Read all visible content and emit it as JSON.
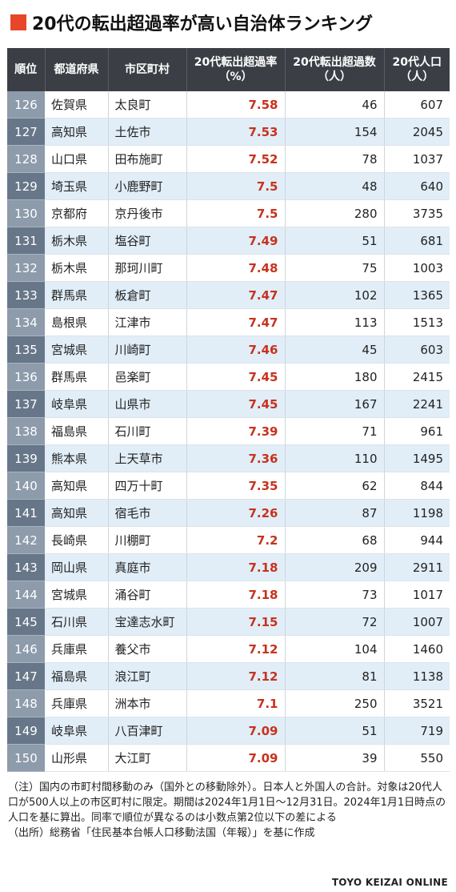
{
  "title": "20代の転出超過率が高い自治体ランキング",
  "colors": {
    "accent": "#e8462a",
    "rate_text": "#c8321d",
    "header_bg": "#3b3f45",
    "stripe": "#e1eef8"
  },
  "table": {
    "headers": [
      "順位",
      "都道府県",
      "市区町村",
      "20代転出超過率\n（%）",
      "20代転出超過数\n（人）",
      "20代人口\n（人）"
    ],
    "rows": [
      [
        "126",
        "佐賀県",
        "太良町",
        "7.58",
        "46",
        "607"
      ],
      [
        "127",
        "高知県",
        "土佐市",
        "7.53",
        "154",
        "2045"
      ],
      [
        "128",
        "山口県",
        "田布施町",
        "7.52",
        "78",
        "1037"
      ],
      [
        "129",
        "埼玉県",
        "小鹿野町",
        "7.5",
        "48",
        "640"
      ],
      [
        "130",
        "京都府",
        "京丹後市",
        "7.5",
        "280",
        "3735"
      ],
      [
        "131",
        "栃木県",
        "塩谷町",
        "7.49",
        "51",
        "681"
      ],
      [
        "132",
        "栃木県",
        "那珂川町",
        "7.48",
        "75",
        "1003"
      ],
      [
        "133",
        "群馬県",
        "板倉町",
        "7.47",
        "102",
        "1365"
      ],
      [
        "134",
        "島根県",
        "江津市",
        "7.47",
        "113",
        "1513"
      ],
      [
        "135",
        "宮城県",
        "川崎町",
        "7.46",
        "45",
        "603"
      ],
      [
        "136",
        "群馬県",
        "邑楽町",
        "7.45",
        "180",
        "2415"
      ],
      [
        "137",
        "岐阜県",
        "山県市",
        "7.45",
        "167",
        "2241"
      ],
      [
        "138",
        "福島県",
        "石川町",
        "7.39",
        "71",
        "961"
      ],
      [
        "139",
        "熊本県",
        "上天草市",
        "7.36",
        "110",
        "1495"
      ],
      [
        "140",
        "高知県",
        "四万十町",
        "7.35",
        "62",
        "844"
      ],
      [
        "141",
        "高知県",
        "宿毛市",
        "7.26",
        "87",
        "1198"
      ],
      [
        "142",
        "長崎県",
        "川棚町",
        "7.2",
        "68",
        "944"
      ],
      [
        "143",
        "岡山県",
        "真庭市",
        "7.18",
        "209",
        "2911"
      ],
      [
        "144",
        "宮城県",
        "涌谷町",
        "7.18",
        "73",
        "1017"
      ],
      [
        "145",
        "石川県",
        "宝達志水町",
        "7.15",
        "72",
        "1007"
      ],
      [
        "146",
        "兵庫県",
        "養父市",
        "7.12",
        "104",
        "1460"
      ],
      [
        "147",
        "福島県",
        "浪江町",
        "7.12",
        "81",
        "1138"
      ],
      [
        "148",
        "兵庫県",
        "洲本市",
        "7.1",
        "250",
        "3521"
      ],
      [
        "149",
        "岐阜県",
        "八百津町",
        "7.09",
        "51",
        "719"
      ],
      [
        "150",
        "山形県",
        "大江町",
        "7.09",
        "39",
        "550"
      ]
    ]
  },
  "notes": {
    "note": "（注）国内の市町村間移動のみ（国外との移動除外）。日本人と外国人の合計。対象は20代人口が500人以上の市区町村に限定。期間は2024年1月1日～12月31日。2024年1月1日時点の人口を基に算出。同率で順位が異なるのは小数点第2位以下の差による",
    "source": "（出所）総務省「住民基本台帳人口移動法国（年報）」を基に作成"
  },
  "credit": "TOYO KEIZAI ONLINE"
}
